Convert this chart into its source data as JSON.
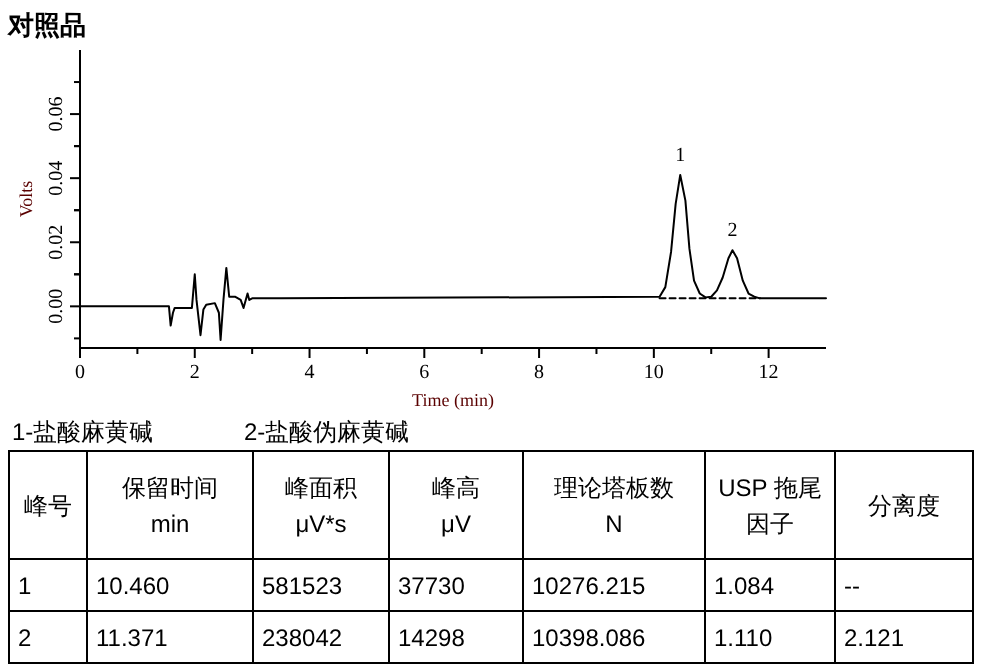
{
  "chart_data": [
    {
      "type": "line",
      "title": "对照品",
      "xlabel": "Time (min)",
      "ylabel": "Volts",
      "xlim": [
        0,
        13
      ],
      "ylim": [
        -0.013,
        0.08
      ],
      "xticks": [
        0,
        2,
        4,
        6,
        8,
        10,
        12
      ],
      "yticks": [
        {
          "value": 0,
          "label": "0.00"
        },
        {
          "value": 0.02,
          "label": "0.02"
        },
        {
          "value": 0.04,
          "label": "0.04"
        },
        {
          "value": 0.06,
          "label": "0.06"
        }
      ],
      "grid": false,
      "marker": "none",
      "series": [
        {
          "color": "#000000",
          "line_style": "solid",
          "x": [
            0,
            1.55,
            1.58,
            1.62,
            1.65,
            1.95,
            2.0,
            2.03,
            2.1,
            2.15,
            2.2,
            2.35,
            2.42,
            2.45,
            2.5,
            2.55,
            2.6,
            2.7,
            2.8,
            2.85,
            2.92,
            2.95,
            3.0,
            3.5,
            10.1,
            10.2,
            10.3,
            10.38,
            10.46,
            10.55,
            10.62,
            10.7,
            10.8,
            10.9,
            11.0,
            11.1,
            11.2,
            11.3,
            11.37,
            11.45,
            11.55,
            11.65,
            11.75,
            11.85,
            13
          ],
          "values": [
            0,
            0,
            -0.006,
            -0.002,
            -0.0005,
            -0.0005,
            0.01,
            0.002,
            -0.009,
            -0.001,
            0.0005,
            0.001,
            -0.002,
            -0.0105,
            0.002,
            0.012,
            0.003,
            0.003,
            0.002,
            -0.0005,
            0.004,
            0.002,
            0.0025,
            0.0025,
            0.003,
            0.006,
            0.017,
            0.032,
            0.041,
            0.033,
            0.018,
            0.008,
            0.004,
            0.0028,
            0.003,
            0.005,
            0.009,
            0.015,
            0.0175,
            0.015,
            0.008,
            0.004,
            0.003,
            0.0025,
            0.0025
          ]
        },
        {
          "color": "#000000",
          "line_style": "dashed",
          "x": [
            10.1,
            11.85
          ],
          "values": [
            0.0025,
            0.0025
          ]
        }
      ],
      "annotations": [
        {
          "text": "1",
          "x": 10.46,
          "y": 0.041
        },
        {
          "text": "2",
          "x": 11.37,
          "y": 0.0175
        }
      ]
    },
    {
      "type": "other",
      "annotations": [
        "1-盐酸麻黄碱",
        "2-盐酸伪麻黄碱",
        "峰号",
        "保留时间\nmin",
        "峰面积\nμV*s",
        "峰高\nμV",
        "理论塔板数\nN",
        "USP 拖尾因子",
        "分离度",
        "1",
        "10.460",
        "581523",
        "37730",
        "10276.215",
        "1.084",
        "--",
        "2",
        "11.371",
        "238042",
        "14298",
        "10398.086",
        "1.110",
        "2.121"
      ]
    }
  ]
}
